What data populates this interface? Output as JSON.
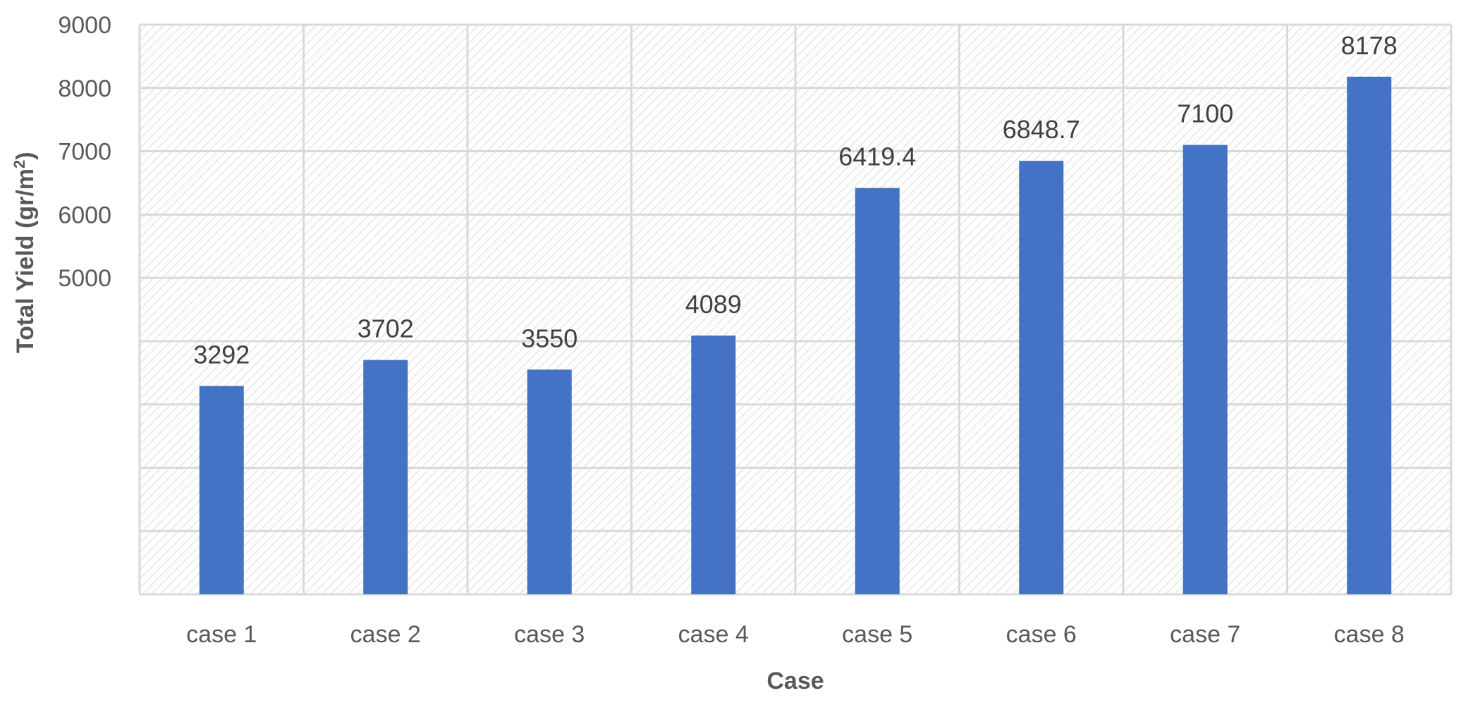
{
  "chart_data": {
    "type": "bar",
    "categories": [
      "case 1",
      "case 2",
      "case 3",
      "case 4",
      "case 5",
      "case 6",
      "case 7",
      "case 8"
    ],
    "values": [
      3292,
      3702,
      3550,
      4089,
      6419.4,
      6848.7,
      7100,
      8178
    ],
    "data_labels": [
      "3292",
      "3702",
      "3550",
      "4089",
      "6419.4",
      "6848.7",
      "7100",
      "8178"
    ],
    "xlabel": "Case",
    "ylabel": "Total Yield (gr/m",
    "ylabel_superscript": "2",
    "ylabel_suffix": ")",
    "ylim": [
      0,
      9000
    ],
    "gridline_values": [
      0,
      1000,
      2000,
      3000,
      4000,
      5000,
      6000,
      7000,
      8000,
      9000
    ],
    "yticks": [
      5000,
      6000,
      7000,
      8000,
      9000
    ],
    "ytick_labels": [
      "5000",
      "6000",
      "7000",
      "8000",
      "9000"
    ],
    "grid": true,
    "legend": "none",
    "plot_background": "diagonal-hatch",
    "colors": {
      "bar": "#4472c4",
      "grid": "#d9d9d9",
      "hatch": "#e6e6e6",
      "tick_text": "#595959",
      "label_text": "#404040"
    }
  }
}
